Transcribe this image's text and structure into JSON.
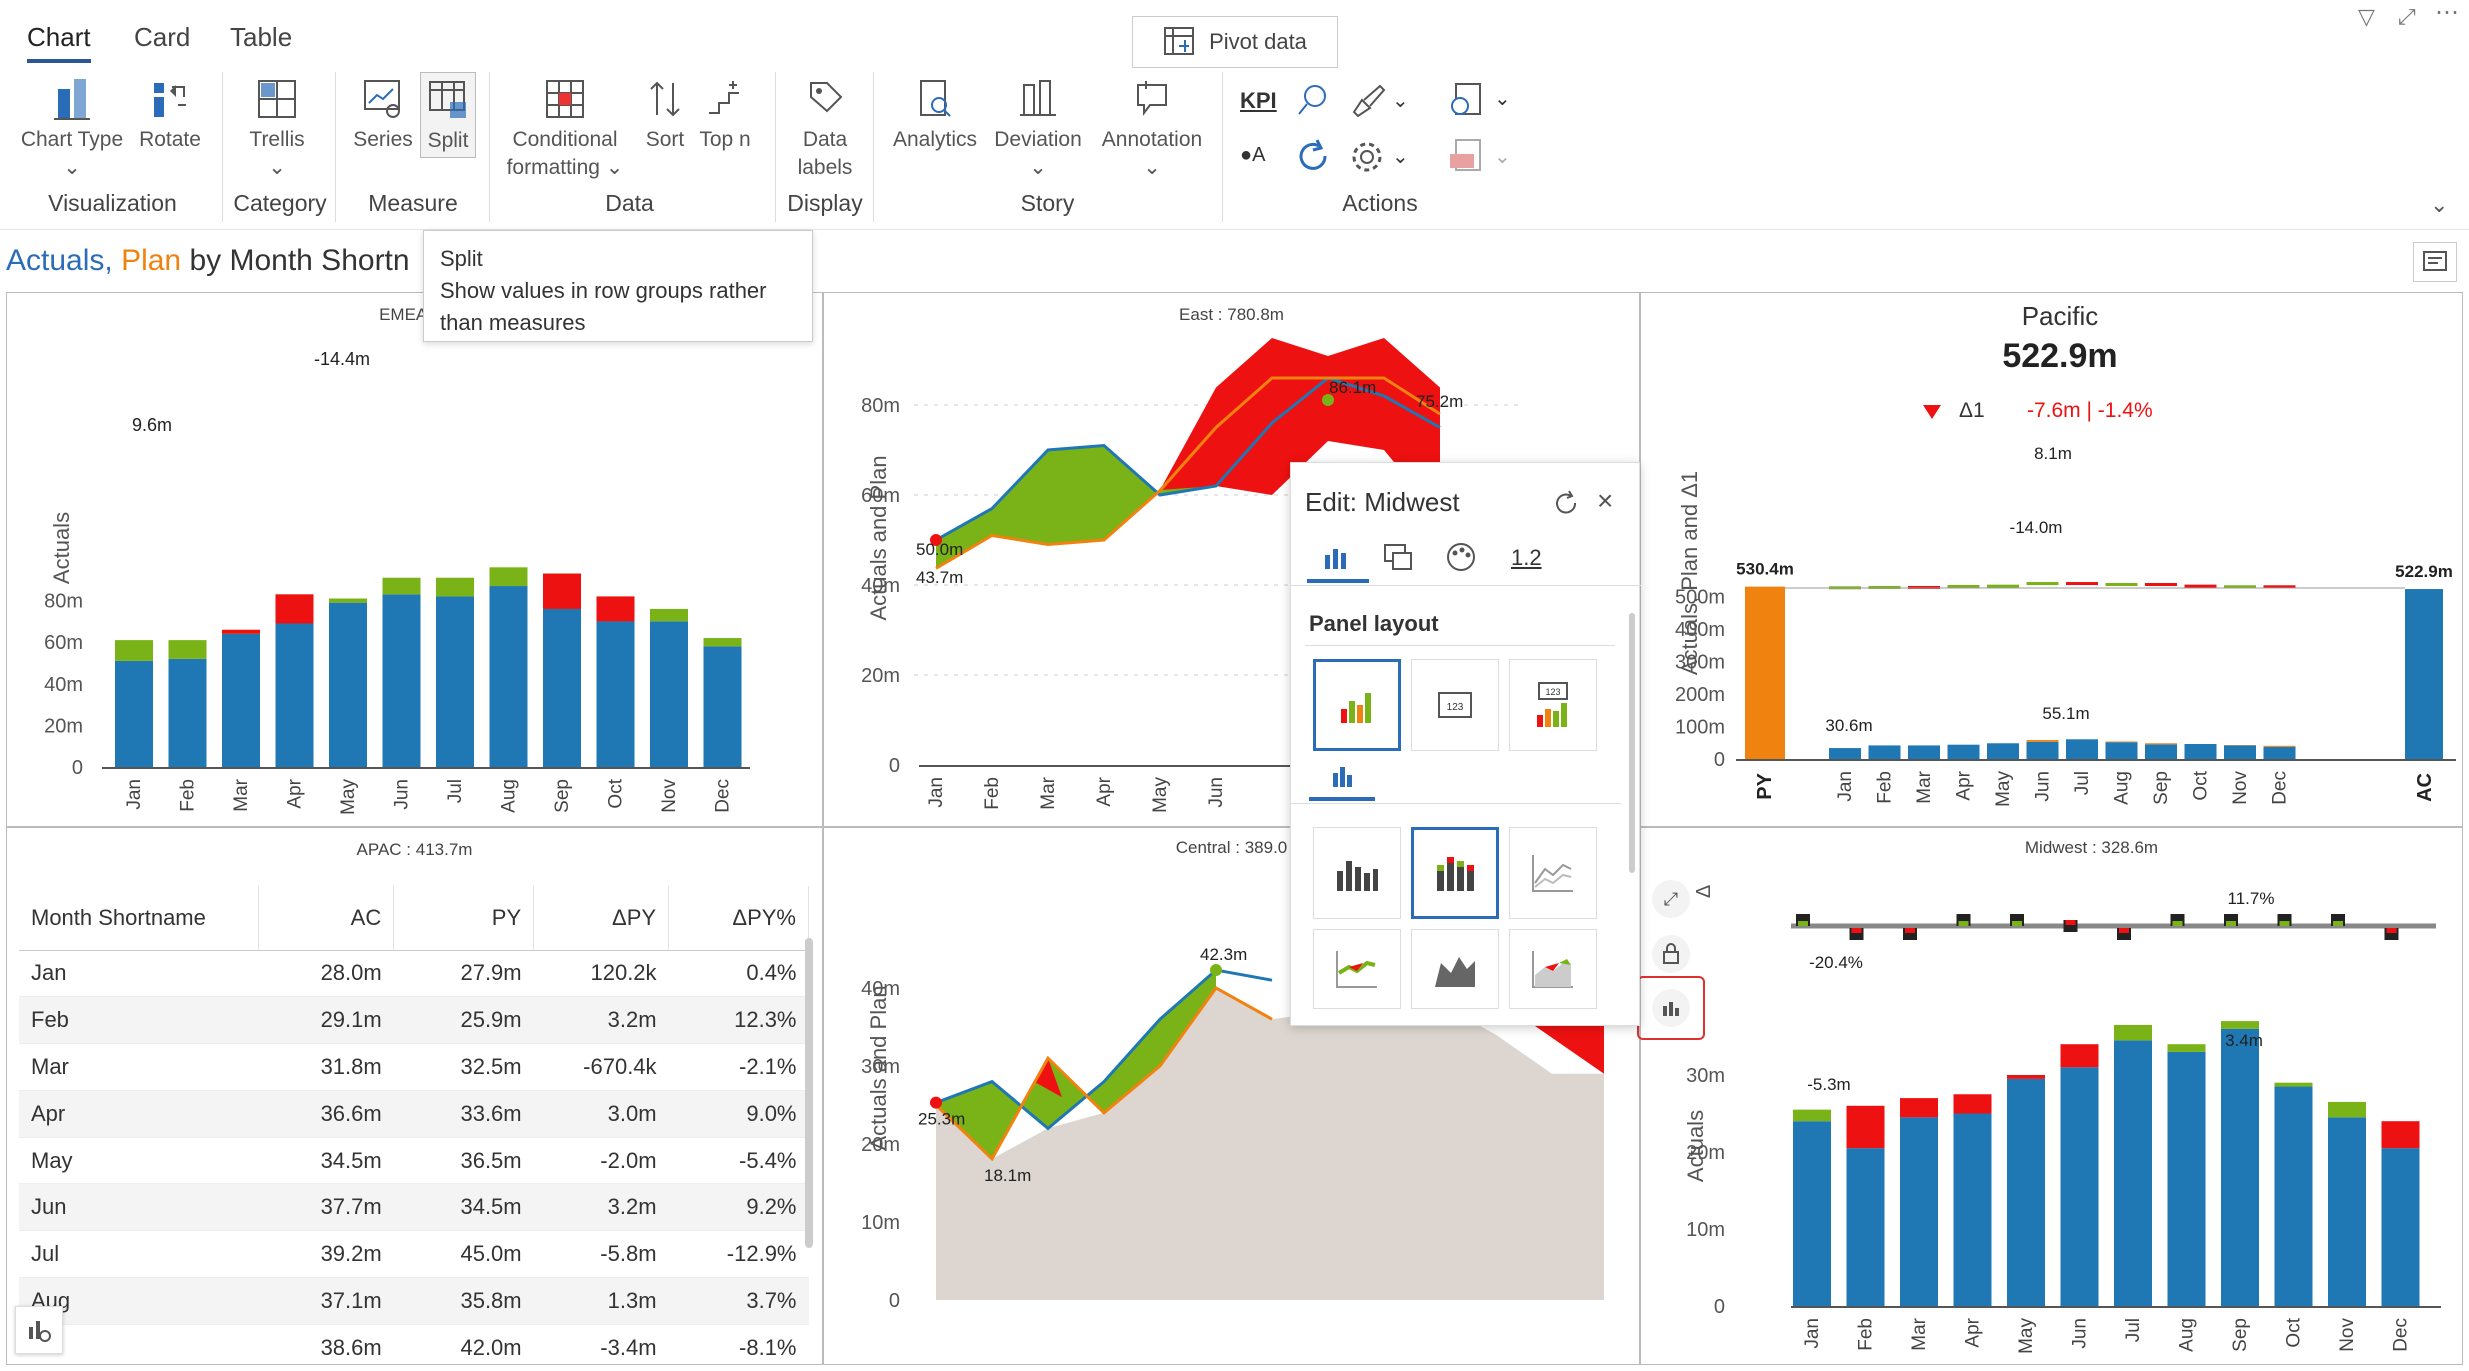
{
  "tabs": [
    "Chart",
    "Card",
    "Table"
  ],
  "pivot": "Pivot data",
  "ribbon": {
    "chart_type": "Chart Type",
    "rotate": "Rotate",
    "trellis": "Trellis",
    "series": "Series",
    "split": "Split",
    "cond1": "Conditional",
    "cond2": "formatting",
    "sort": "Sort",
    "topn": "Top n",
    "datalabels1": "Data",
    "datalabels2": "labels",
    "analytics": "Analytics",
    "deviation": "Deviation",
    "annotation": "Annotation",
    "kpi": "KPI",
    "groups": {
      "visualization": "Visualization",
      "category": "Category",
      "measure": "Measure",
      "data": "Data",
      "display": "Display",
      "story": "Story",
      "actions": "Actions"
    }
  },
  "title": {
    "actuals": "Actuals,",
    "plan": "Plan",
    "rest": "by Month Shortn"
  },
  "tooltip": {
    "title": "Split",
    "body1": "Show values in row groups rather",
    "body2": "than measures"
  },
  "colors": {
    "actual": "#1f77b4",
    "plan": "#f0820f",
    "good": "#7ab317",
    "bad": "#ee1111",
    "area": "#ddd6d0"
  },
  "emea": {
    "title": "EMEA : 8",
    "ylabel": "Actuals",
    "labels": [
      "9.6m",
      "-14.4m"
    ],
    "ticks": [
      "80m",
      "60m",
      "40m",
      "20m",
      "0"
    ],
    "months": [
      "Jan",
      "Feb",
      "Mar",
      "Apr",
      "May",
      "Jun",
      "Jul",
      "Aug",
      "Sep",
      "Oct",
      "Nov",
      "Dec"
    ]
  },
  "east": {
    "title": "East : 780.8m",
    "ylabel": "Actuals and Plan",
    "ticks": [
      "80m",
      "60m",
      "40m",
      "20m",
      "0"
    ],
    "labels": [
      "50.0m",
      "43.7m",
      "86.1m",
      "75.2m"
    ],
    "months": [
      "Jan",
      "Feb",
      "Mar",
      "Apr",
      "May",
      "Jun"
    ]
  },
  "pacific": {
    "region": "Pacific",
    "total": "522.9m",
    "delta_label": "Δ1",
    "delta": "-7.6m | -1.4%",
    "ylabel": "Actuals, Plan and Δ1",
    "py_value": "530.4m",
    "ac_value": "522.9m",
    "labels": [
      "8.1m",
      "-14.0m",
      "30.6m",
      "55.1m"
    ],
    "ticks": [
      "500m",
      "400m",
      "300m",
      "200m",
      "100m",
      "0"
    ],
    "py": "PY",
    "ac": "AC",
    "months": [
      "Jan",
      "Feb",
      "Mar",
      "Apr",
      "May",
      "Jun",
      "Jul",
      "Aug",
      "Sep",
      "Oct",
      "Nov",
      "Dec"
    ]
  },
  "apac": {
    "title": "APAC : 413.7m",
    "headers": [
      "Month Shortname",
      "AC",
      "PY",
      "ΔPY",
      "ΔPY%"
    ],
    "rows": [
      [
        "Jan",
        "28.0m",
        "27.9m",
        "120.2k",
        "0.4%"
      ],
      [
        "Feb",
        "29.1m",
        "25.9m",
        "3.2m",
        "12.3%"
      ],
      [
        "Mar",
        "31.8m",
        "32.5m",
        "-670.4k",
        "-2.1%"
      ],
      [
        "Apr",
        "36.6m",
        "33.6m",
        "3.0m",
        "9.0%"
      ],
      [
        "May",
        "34.5m",
        "36.5m",
        "-2.0m",
        "-5.4%"
      ],
      [
        "Jun",
        "37.7m",
        "34.5m",
        "3.2m",
        "9.2%"
      ],
      [
        "Jul",
        "39.2m",
        "45.0m",
        "-5.8m",
        "-12.9%"
      ],
      [
        "Aug",
        "37.1m",
        "35.8m",
        "1.3m",
        "3.7%"
      ],
      [
        "",
        "38.6m",
        "42.0m",
        "-3.4m",
        "-8.1%"
      ]
    ]
  },
  "central": {
    "title": "Central : 389.0",
    "ylabel": "Actuals and Plan",
    "ticks": [
      "40m",
      "30m",
      "20m",
      "10m",
      "0"
    ],
    "labels": [
      "25.3m",
      "18.1m",
      "42.3m"
    ]
  },
  "midwest": {
    "title": "Midwest : 328.6m",
    "ylabel": "Actuals",
    "labels": [
      "11.7%",
      "-20.4%",
      "-5.3m",
      "3.4m"
    ],
    "ticks": [
      "30m",
      "20m",
      "10m",
      "0"
    ],
    "months": [
      "Jan",
      "Feb",
      "Mar",
      "Apr",
      "May",
      "Jun",
      "Jul",
      "Aug",
      "Sep",
      "Oct",
      "Nov",
      "Dec"
    ]
  },
  "popup": {
    "title": "Edit: Midwest",
    "tab_number": "1.2",
    "section": "Panel layout"
  },
  "side_delta": "Δ"
}
